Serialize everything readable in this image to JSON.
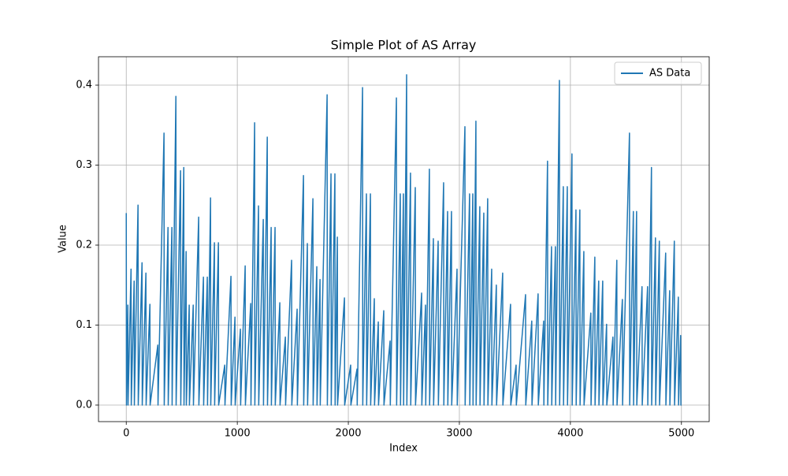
{
  "chart_data": {
    "type": "line",
    "title": "Simple Plot of AS Array",
    "x_label": "Index",
    "y_label": "Value",
    "x": [
      0,
      2,
      14,
      16,
      43,
      45,
      71,
      73,
      106,
      108,
      142,
      144,
      177,
      179,
      213,
      215,
      284,
      286,
      340,
      342,
      376,
      378,
      411,
      413,
      447,
      449,
      489,
      491,
      518,
      520,
      539,
      541,
      567,
      569,
      603,
      605,
      652,
      654,
      695,
      697,
      730,
      732,
      759,
      761,
      794,
      796,
      830,
      832,
      887,
      889,
      943,
      945,
      979,
      981,
      1028,
      1030,
      1071,
      1073,
      1121,
      1123,
      1156,
      1158,
      1191,
      1193,
      1234,
      1236,
      1270,
      1272,
      1305,
      1307,
      1340,
      1342,
      1383,
      1385,
      1433,
      1435,
      1489,
      1491,
      1539,
      1541,
      1596,
      1598,
      1631,
      1633,
      1681,
      1683,
      1716,
      1718,
      1745,
      1747,
      1809,
      1811,
      1844,
      1846,
      1879,
      1881,
      1901,
      1903,
      1965,
      1967,
      2021,
      2023,
      2078,
      2080,
      2128,
      2130,
      2163,
      2165,
      2199,
      2201,
      2234,
      2236,
      2270,
      2272,
      2319,
      2321,
      2376,
      2378,
      2433,
      2435,
      2468,
      2470,
      2496,
      2498,
      2525,
      2527,
      2560,
      2562,
      2603,
      2605,
      2660,
      2662,
      2695,
      2697,
      2730,
      2732,
      2766,
      2768,
      2809,
      2811,
      2858,
      2860,
      2894,
      2896,
      2929,
      2931,
      2979,
      2981,
      3050,
      3052,
      3092,
      3094,
      3121,
      3123,
      3149,
      3151,
      3184,
      3186,
      3220,
      3222,
      3255,
      3257,
      3291,
      3293,
      3333,
      3335,
      3390,
      3392,
      3461,
      3463,
      3511,
      3513,
      3596,
      3598,
      3652,
      3654,
      3709,
      3711,
      3759,
      3761,
      3794,
      3796,
      3830,
      3832,
      3865,
      3867,
      3901,
      3903,
      3936,
      3938,
      3972,
      3974,
      4014,
      4016,
      4050,
      4052,
      4085,
      4087,
      4121,
      4123,
      4184,
      4186,
      4220,
      4222,
      4255,
      4257,
      4291,
      4293,
      4326,
      4328,
      4383,
      4385,
      4418,
      4420,
      4468,
      4470,
      4532,
      4534,
      4567,
      4569,
      4596,
      4598,
      4645,
      4647,
      4695,
      4697,
      4730,
      4732,
      4766,
      4768,
      4801,
      4803,
      4858,
      4860,
      4894,
      4896,
      4936,
      4938,
      4972,
      4974,
      4993,
      4995,
      5000
    ],
    "series": [
      {
        "name": "AS Data",
        "color": "#1f77b4",
        "values": [
          0.24,
          0,
          0.125,
          0,
          0.17,
          0,
          0.155,
          0,
          0.25,
          0,
          0.178,
          0,
          0.165,
          0,
          0.126,
          0,
          0.075,
          0,
          0.34,
          0,
          0.222,
          0,
          0.222,
          0,
          0.386,
          0,
          0.293,
          0,
          0.297,
          0,
          0.192,
          0,
          0.125,
          0,
          0.125,
          0,
          0.235,
          0,
          0.16,
          0,
          0.16,
          0,
          0.259,
          0,
          0.203,
          0,
          0.203,
          0,
          0.05,
          0,
          0.161,
          0,
          0.11,
          0,
          0.095,
          0,
          0.174,
          0,
          0.127,
          0,
          0.353,
          0,
          0.249,
          0,
          0.232,
          0,
          0.335,
          0,
          0.222,
          0,
          0.222,
          0,
          0.128,
          0,
          0.085,
          0,
          0.181,
          0,
          0.12,
          0,
          0.287,
          0,
          0.202,
          0,
          0.258,
          0,
          0.173,
          0,
          0.157,
          0,
          0.388,
          0,
          0.289,
          0,
          0.289,
          0,
          0.21,
          0,
          0.134,
          0,
          0.05,
          0,
          0.045,
          0,
          0.397,
          0,
          0.264,
          0,
          0.264,
          0,
          0.133,
          0,
          0.104,
          0,
          0.118,
          0,
          0.08,
          0,
          0.384,
          0,
          0.264,
          0,
          0.264,
          0,
          0.413,
          0,
          0.29,
          0,
          0.272,
          0,
          0.14,
          0,
          0.125,
          0,
          0.295,
          0,
          0.208,
          0,
          0.205,
          0,
          0.278,
          0,
          0.242,
          0,
          0.242,
          0,
          0.17,
          0,
          0.348,
          0,
          0.264,
          0,
          0.264,
          0,
          0.355,
          0,
          0.248,
          0,
          0.24,
          0,
          0.258,
          0,
          0.17,
          0,
          0.15,
          0,
          0.165,
          0,
          0.126,
          0,
          0.05,
          0,
          0.138,
          0,
          0.105,
          0,
          0.139,
          0,
          0.105,
          0,
          0.305,
          0,
          0.198,
          0,
          0.198,
          0,
          0.406,
          0,
          0.273,
          0,
          0.273,
          0,
          0.314,
          0,
          0.244,
          0,
          0.244,
          0,
          0.192,
          0,
          0.115,
          0,
          0.185,
          0,
          0.155,
          0,
          0.155,
          0,
          0.101,
          0,
          0.085,
          0,
          0.181,
          0,
          0.132,
          0,
          0.34,
          0,
          0.242,
          0,
          0.242,
          0,
          0.148,
          0,
          0.148,
          0,
          0.297,
          0,
          0.209,
          0,
          0.205,
          0,
          0.19,
          0,
          0.143,
          0,
          0.205,
          0,
          0.135,
          0,
          0.087,
          0,
          0
        ]
      }
    ],
    "xlim": [
      -250,
      5250
    ],
    "ylim": [
      -0.0207,
      0.4355
    ],
    "xticks": [
      0,
      1000,
      2000,
      3000,
      4000,
      5000
    ],
    "yticks": [
      {
        "value": 0,
        "label": "0.0"
      },
      0.1,
      0.2,
      0.3,
      0.4
    ],
    "grid": true,
    "legend": "upper right"
  }
}
